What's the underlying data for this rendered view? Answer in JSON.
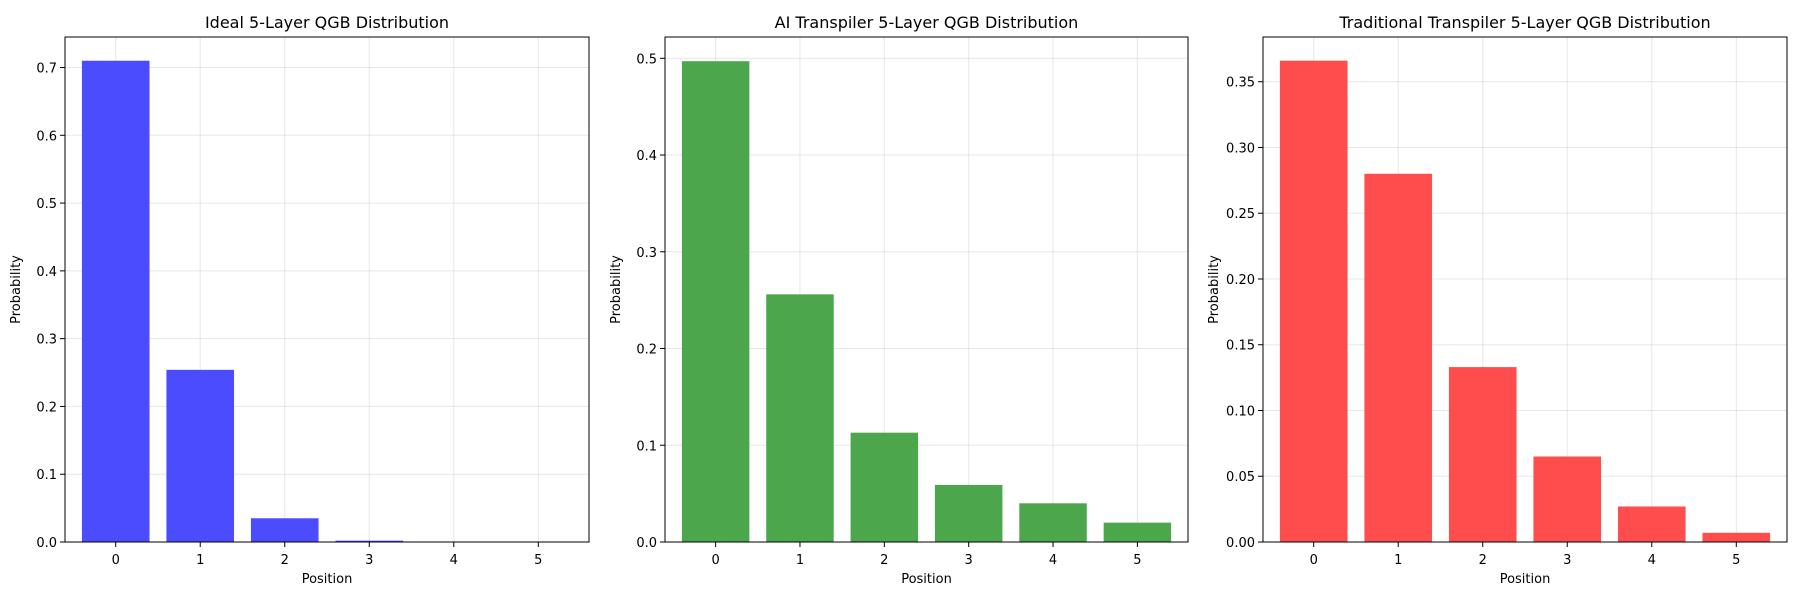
{
  "chart_data": [
    {
      "type": "bar",
      "title": "Ideal 5-Layer QGB Distribution",
      "xlabel": "Position",
      "ylabel": "Probability",
      "categories": [
        "0",
        "1",
        "2",
        "3",
        "4",
        "5"
      ],
      "values": [
        0.71,
        0.254,
        0.035,
        0.002,
        0.0,
        0.0
      ],
      "ylim": [
        0,
        0.745
      ],
      "yticks": [
        0.0,
        0.1,
        0.2,
        0.3,
        0.4,
        0.5,
        0.6,
        0.7
      ],
      "ytick_labels": [
        "0.0",
        "0.1",
        "0.2",
        "0.3",
        "0.4",
        "0.5",
        "0.6",
        "0.7"
      ],
      "color": "#4c4cff",
      "grid": true
    },
    {
      "type": "bar",
      "title": "AI Transpiler 5-Layer QGB Distribution",
      "xlabel": "Position",
      "ylabel": "Probability",
      "categories": [
        "0",
        "1",
        "2",
        "3",
        "4",
        "5"
      ],
      "values": [
        0.497,
        0.256,
        0.113,
        0.059,
        0.04,
        0.02
      ],
      "ylim": [
        0,
        0.522
      ],
      "yticks": [
        0.0,
        0.1,
        0.2,
        0.3,
        0.4,
        0.5
      ],
      "ytick_labels": [
        "0.0",
        "0.1",
        "0.2",
        "0.3",
        "0.4",
        "0.5"
      ],
      "color": "#4ca64c",
      "grid": true
    },
    {
      "type": "bar",
      "title": "Traditional Transpiler 5-Layer QGB Distribution",
      "xlabel": "Position",
      "ylabel": "Probability",
      "categories": [
        "0",
        "1",
        "2",
        "3",
        "4",
        "5"
      ],
      "values": [
        0.366,
        0.28,
        0.133,
        0.065,
        0.027,
        0.007
      ],
      "ylim": [
        0,
        0.384
      ],
      "yticks": [
        0.0,
        0.05,
        0.1,
        0.15,
        0.2,
        0.25,
        0.3,
        0.35
      ],
      "ytick_labels": [
        "0.00",
        "0.05",
        "0.10",
        "0.15",
        "0.20",
        "0.25",
        "0.30",
        "0.35"
      ],
      "color": "#ff4c4c",
      "grid": true
    }
  ]
}
